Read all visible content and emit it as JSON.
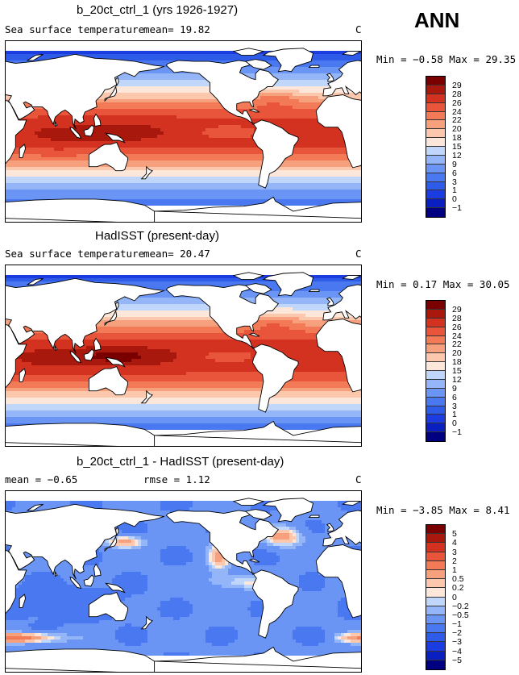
{
  "season": "ANN",
  "colors": {
    "abs": [
      "#000080",
      "#0a1fbf",
      "#1a3ce0",
      "#2e5be8",
      "#4a78f0",
      "#6b95f5",
      "#94b6f8",
      "#c0d6fb",
      "#e8f1fd",
      "#fde7da",
      "#fbc7ad",
      "#f7a07e",
      "#f27a56",
      "#e9553a",
      "#d2321f",
      "#a8180c",
      "#7a0000"
    ],
    "diff": [
      "#000080",
      "#0a1fbf",
      "#1a3ce0",
      "#2e5be8",
      "#4a78f0",
      "#6b95f5",
      "#94b6f8",
      "#c0d6fb",
      "#e8f1fd",
      "#fde7da",
      "#fbc7ad",
      "#f7a07e",
      "#f27a56",
      "#e9553a",
      "#d2321f",
      "#a8180c",
      "#7a0000"
    ]
  },
  "panels": [
    {
      "title": "b_20ct_ctrl_1 (yrs 1926-1927)",
      "left_label": "Sea surface temperature",
      "stat_text": "mean=  19.82",
      "units": "C",
      "minmax_text": "Min =  −0.58 Max =  29.35",
      "levels": [
        "29",
        "28",
        "26",
        "24",
        "22",
        "20",
        "18",
        "15",
        "12",
        "9",
        "6",
        "3",
        "1",
        "0",
        "−1"
      ],
      "scheme": "abs"
    },
    {
      "title": "HadISST (present-day)",
      "left_label": "Sea surface temperature",
      "stat_text": "mean=  20.47",
      "units": "C",
      "minmax_text": "Min =   0.17 Max =  30.05",
      "levels": [
        "29",
        "28",
        "26",
        "24",
        "22",
        "20",
        "18",
        "15",
        "12",
        "9",
        "6",
        "3",
        "1",
        "0",
        "−1"
      ],
      "scheme": "abs"
    },
    {
      "title": "b_20ct_ctrl_1 - HadISST (present-day)",
      "left_label": "mean =  −0.65",
      "stat_text": "rmse =   1.12",
      "units": "C",
      "minmax_text": "Min =  −3.85 Max =   8.41",
      "levels": [
        "5",
        "4",
        "3",
        "2",
        "1",
        "0.5",
        "0.2",
        "0",
        "−0.2",
        "−0.5",
        "−1",
        "−2",
        "−3",
        "−4",
        "−5"
      ],
      "scheme": "diff"
    }
  ]
}
